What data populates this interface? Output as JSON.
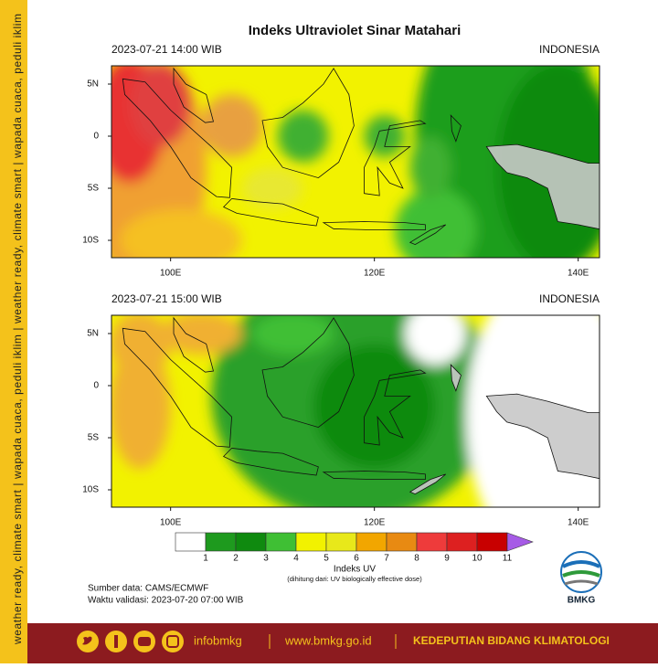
{
  "title": "Indeks Ultraviolet Sinar Matahari",
  "panels": [
    {
      "timestamp": "2023-07-21  14:00 WIB",
      "region": "INDONESIA",
      "lat_labels": [
        "5N",
        "0",
        "5S",
        "10S"
      ],
      "lon_labels": [
        "100E",
        "120E",
        "140E"
      ]
    },
    {
      "timestamp": "2023-07-21  15:00 WIB",
      "region": "INDONESIA",
      "lat_labels": [
        "5N",
        "0",
        "5S",
        "10S"
      ],
      "lon_labels": [
        "100E",
        "120E",
        "140E"
      ]
    }
  ],
  "colorbar": {
    "label": "Indeks UV",
    "note": "(dihitung dari: UV biologically effective dose)",
    "ticks": [
      1,
      2,
      3,
      4,
      5,
      6,
      7,
      8,
      9,
      10,
      11
    ],
    "colors": [
      "#ffffff",
      "#1e9a1e",
      "#0f8a0f",
      "#3fbf34",
      "#f2f200",
      "#e8e81a",
      "#f2a600",
      "#e88a12",
      "#ee3b3b",
      "#dd2020",
      "#c80000"
    ],
    "arrow_color": "#a65be6"
  },
  "source": "Sumber data: CAMS/ECMWF",
  "validity": "Waktu validasi: 2023-07-20 07:00 WIB",
  "logo_text": "BMKG",
  "side_text": "weather ready, climate smart | wapada cuaca, peduli iklim | weather ready, climate smart | wapada cuaca, peduli iklim",
  "footer": {
    "handle": "infobmkg",
    "website": "www.bmkg.go.id",
    "unit": "KEDEPUTIAN BIDANG KLIMATOLOGI"
  }
}
